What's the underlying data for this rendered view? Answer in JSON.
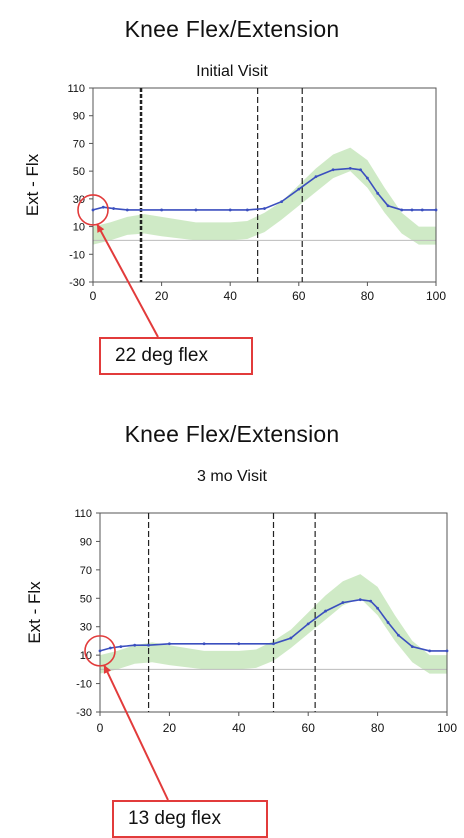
{
  "chart_data": [
    {
      "type": "line",
      "title": "Knee Flex/Extension",
      "subtitle": "Initial Visit",
      "xlabel": "",
      "ylabel": "Ext - Flx",
      "xlim": [
        0,
        100
      ],
      "ylim": [
        -30,
        110
      ],
      "yticks": [
        110,
        90,
        70,
        50,
        30,
        10,
        -10,
        -30
      ],
      "xticks": [
        0,
        20,
        40,
        60,
        80,
        100
      ],
      "grid": false,
      "legend": "none",
      "vlines": [
        {
          "x": 14,
          "style": "bold-dashed"
        },
        {
          "x": 48,
          "style": "dashed"
        },
        {
          "x": 61,
          "style": "dashed"
        }
      ],
      "series": [
        {
          "role": "subject",
          "color": "#3b4fbf",
          "x": [
            0,
            3,
            6,
            10,
            20,
            30,
            40,
            45,
            50,
            55,
            60,
            65,
            70,
            75,
            78,
            80,
            83,
            86,
            90,
            93,
            96,
            100
          ],
          "y": [
            22,
            24,
            23,
            22,
            22,
            22,
            22,
            22,
            23,
            28,
            37,
            46,
            51,
            52,
            51,
            45,
            34,
            25,
            22,
            22,
            22,
            22
          ]
        },
        {
          "role": "normal-band",
          "color": "#bfe3b3",
          "x": [
            0,
            5,
            10,
            15,
            20,
            30,
            40,
            45,
            50,
            55,
            60,
            65,
            70,
            75,
            80,
            85,
            90,
            95,
            100
          ],
          "lower": [
            -3,
            0,
            4,
            5,
            3,
            0,
            0,
            1,
            6,
            15,
            25,
            35,
            45,
            50,
            38,
            20,
            5,
            -3,
            -3
          ],
          "upper": [
            10,
            13,
            17,
            19,
            17,
            13,
            13,
            14,
            20,
            28,
            40,
            52,
            62,
            67,
            58,
            38,
            20,
            10,
            10
          ]
        }
      ],
      "annotations": [
        {
          "text": "22 deg flex",
          "x": 0,
          "y": 22
        }
      ]
    },
    {
      "type": "line",
      "title": "Knee Flex/Extension",
      "subtitle": "3 mo Visit",
      "xlabel": "",
      "ylabel": "Ext - Flx",
      "xlim": [
        0,
        100
      ],
      "ylim": [
        -30,
        110
      ],
      "yticks": [
        110,
        90,
        70,
        50,
        30,
        10,
        -10,
        -30
      ],
      "xticks": [
        0,
        20,
        40,
        60,
        80,
        100
      ],
      "grid": false,
      "legend": "none",
      "vlines": [
        {
          "x": 14,
          "style": "dashed"
        },
        {
          "x": 50,
          "style": "dashed"
        },
        {
          "x": 62,
          "style": "dashed"
        }
      ],
      "series": [
        {
          "role": "subject",
          "color": "#3b4fbf",
          "x": [
            0,
            3,
            6,
            10,
            14,
            20,
            30,
            40,
            50,
            55,
            60,
            65,
            70,
            75,
            78,
            80,
            83,
            86,
            90,
            95,
            100
          ],
          "y": [
            13,
            15,
            16,
            17,
            17,
            18,
            18,
            18,
            18,
            22,
            32,
            41,
            47,
            49,
            48,
            43,
            33,
            24,
            16,
            13,
            13
          ]
        },
        {
          "role": "normal-band",
          "color": "#bfe3b3",
          "x": [
            0,
            5,
            10,
            15,
            20,
            30,
            40,
            45,
            50,
            55,
            60,
            65,
            70,
            75,
            80,
            85,
            90,
            95,
            100
          ],
          "lower": [
            -3,
            0,
            4,
            5,
            3,
            0,
            0,
            1,
            6,
            15,
            25,
            35,
            45,
            50,
            38,
            20,
            5,
            -3,
            -3
          ],
          "upper": [
            10,
            13,
            17,
            19,
            17,
            13,
            13,
            14,
            20,
            28,
            40,
            52,
            62,
            67,
            58,
            38,
            20,
            10,
            10
          ]
        }
      ],
      "annotations": [
        {
          "text": "13 deg flex",
          "x": 0,
          "y": 13
        }
      ]
    }
  ]
}
